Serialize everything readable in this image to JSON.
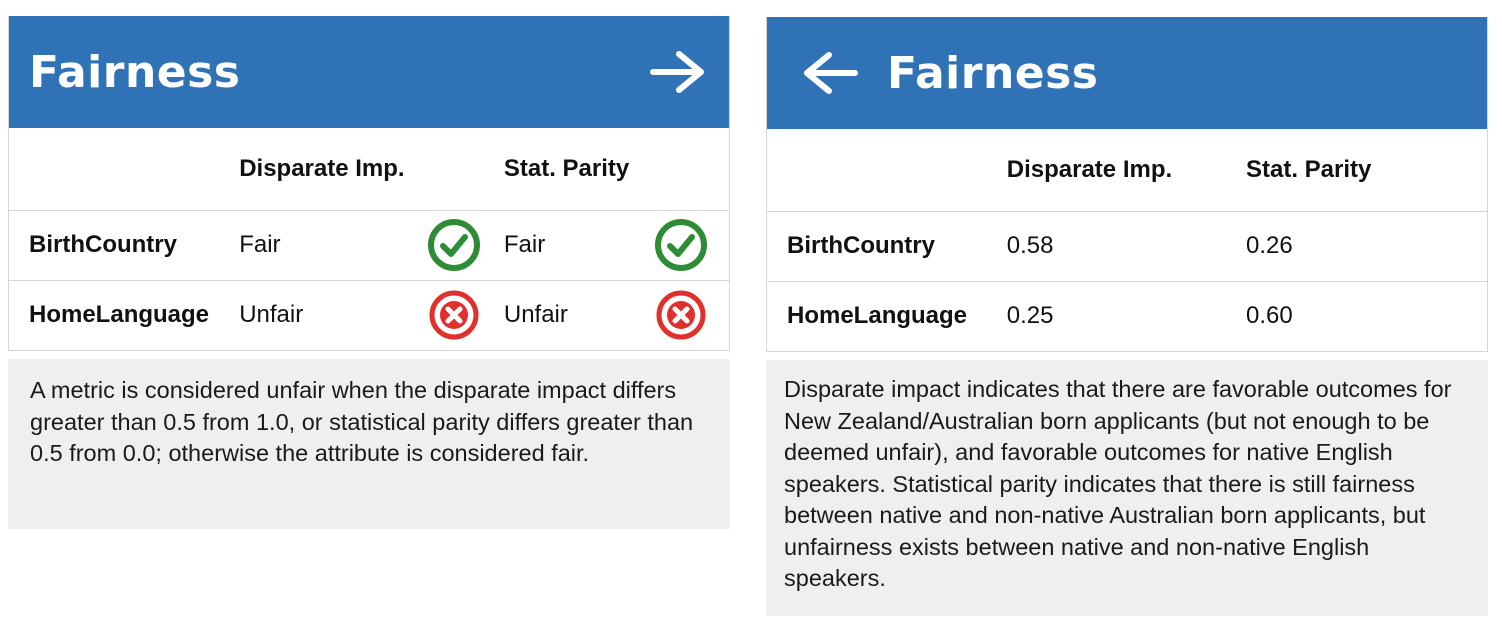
{
  "left_card": {
    "title": "Fairness",
    "nav_icon": "arrow-right-icon",
    "columns": [
      "",
      "Disparate Imp.",
      "",
      "Stat. Parity",
      ""
    ],
    "rows": [
      {
        "label": "BirthCountry",
        "disparate_text": "Fair",
        "disparate_icon": "check-circle-icon",
        "parity_text": "Fair",
        "parity_icon": "check-circle-icon"
      },
      {
        "label": "HomeLanguage",
        "disparate_text": "Unfair",
        "disparate_icon": "x-circle-icon",
        "parity_text": "Unfair",
        "parity_icon": "x-circle-icon"
      }
    ],
    "note": "A metric is considered unfair when the disparate impact differs greater than 0.5 from 1.0, or statistical parity differs greater than 0.5 from 0.0; otherwise the attribute is considered fair."
  },
  "right_card": {
    "title": "Fairness",
    "nav_icon": "arrow-left-icon",
    "columns": [
      "",
      "Disparate Imp.",
      "Stat. Parity"
    ],
    "rows": [
      {
        "label": "BirthCountry",
        "disparate_value": "0.58",
        "parity_value": "0.26"
      },
      {
        "label": "HomeLanguage",
        "disparate_value": "0.25",
        "parity_value": "0.60"
      }
    ],
    "note": "Disparate impact indicates that there are favorable outcomes for New Zealand/Australian born applicants (but not enough to be deemed unfair), and favorable outcomes for native English speakers. Statistical parity indicates that there is still fairness between native and non-native Australian born applicants, but unfairness exists between native and non-native English speakers."
  },
  "colors": {
    "header_blue": "#2f73b6",
    "fair_green": "#2e8b36",
    "unfair_red": "#e1302c",
    "note_background": "#efeff1",
    "border": "#d6d6d6"
  }
}
